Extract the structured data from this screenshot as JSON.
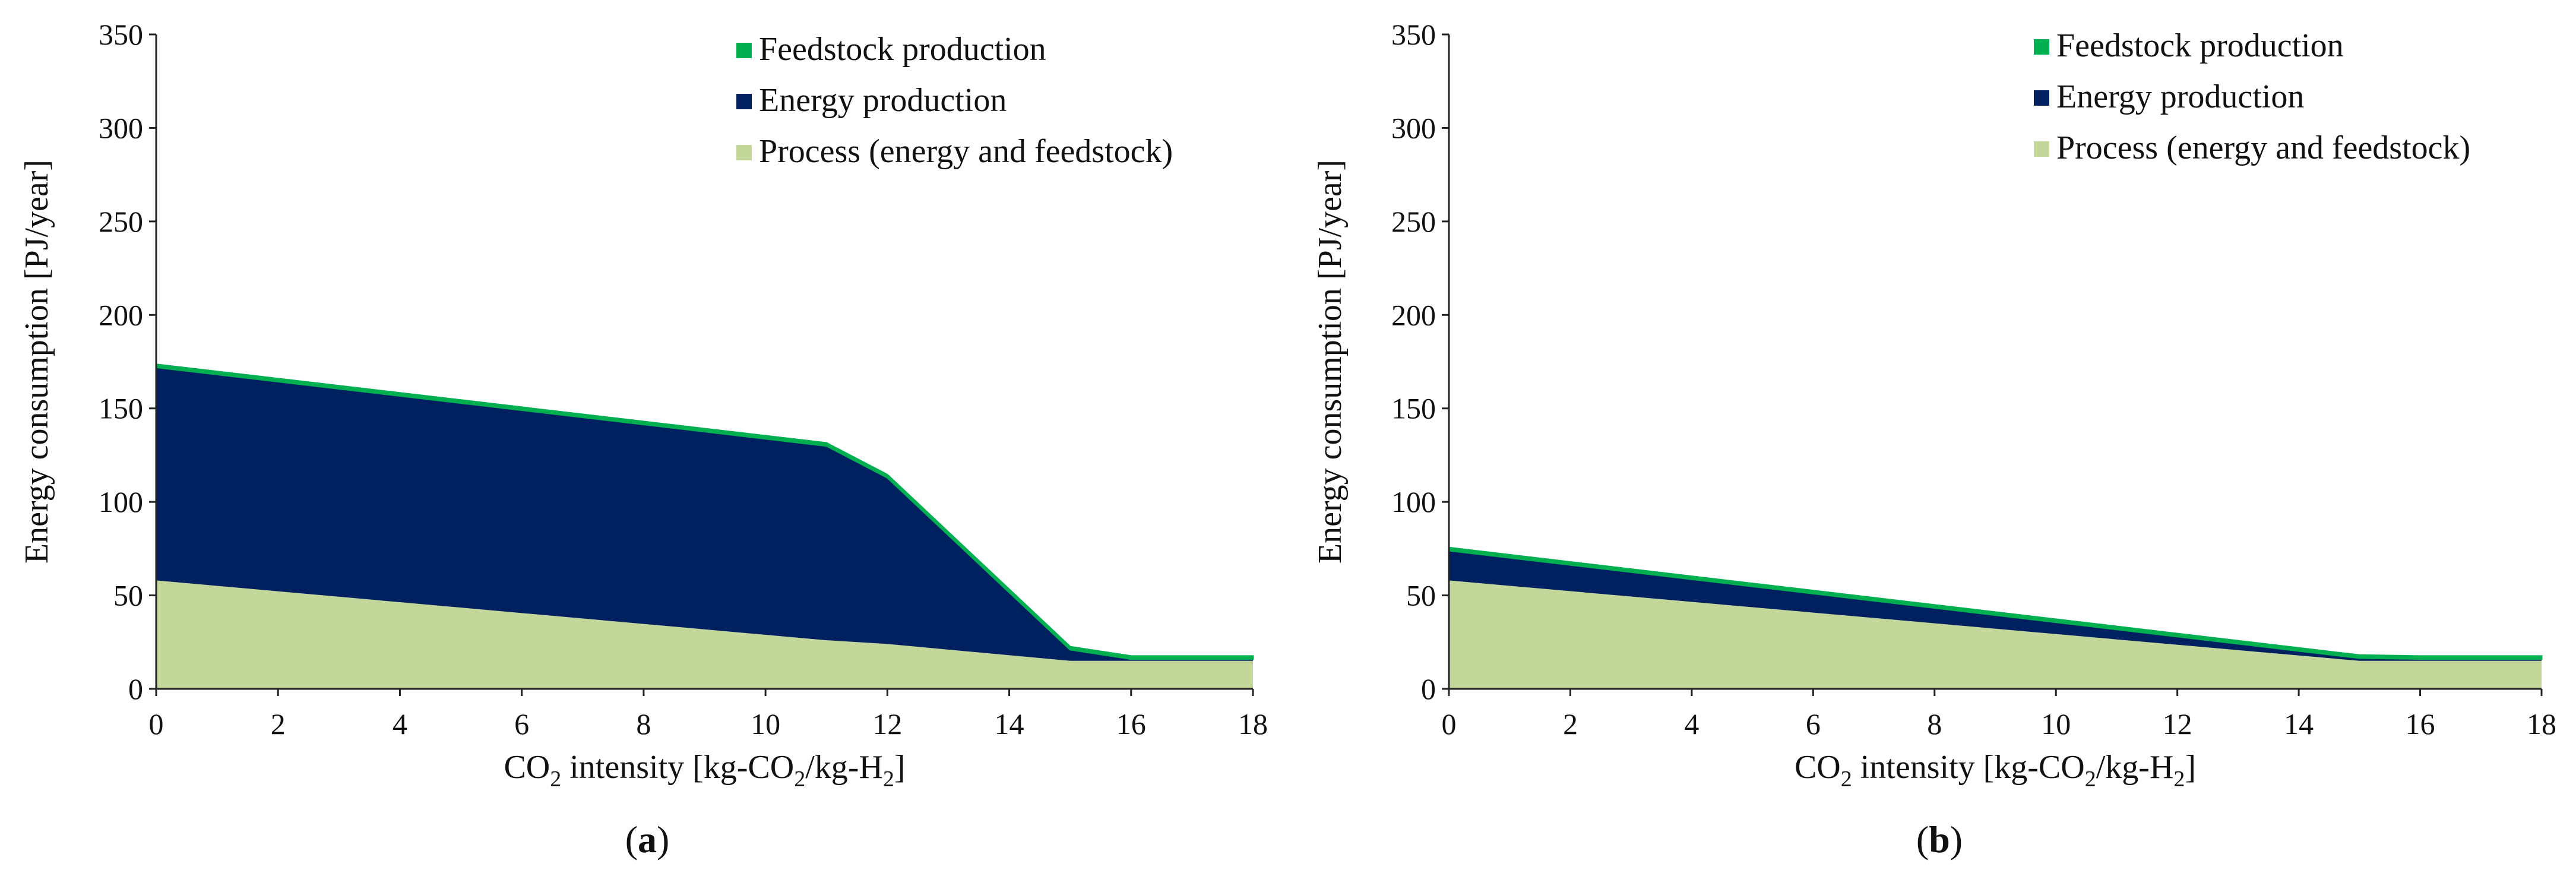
{
  "chart_data": [
    {
      "type": "area",
      "stacked": true,
      "panel_label": "(a)",
      "panel_letter": "a",
      "xlabel_parts": {
        "pre": "CO",
        "sub1": "2",
        "mid": " intensity [kg-CO",
        "sub2": "2",
        "mid2": "/kg-H",
        "sub3": "2",
        "post": "]"
      },
      "ylabel": "Energy consumption [PJ/year]",
      "xlim": [
        0,
        18
      ],
      "ylim": [
        0,
        350
      ],
      "xticks": [
        "0",
        "2",
        "4",
        "6",
        "8",
        "10",
        "12",
        "14",
        "16",
        "18"
      ],
      "yticks": [
        "0",
        "50",
        "100",
        "150",
        "200",
        "250",
        "300",
        "350"
      ],
      "x": [
        0,
        11,
        12,
        15,
        16,
        18
      ],
      "series": [
        {
          "name": "Process (energy and feedstock)",
          "color": "#c4d79b",
          "values": [
            58,
            26,
            24,
            15,
            15,
            15
          ]
        },
        {
          "name": "Energy production",
          "color": "#002060",
          "values": [
            114,
            104,
            89,
            6,
            1,
            1
          ]
        },
        {
          "name": "Feedstock production",
          "color": "#00b050",
          "values": [
            1.5,
            1.5,
            1.5,
            1.5,
            1.5,
            1.5
          ]
        }
      ],
      "legend_order": [
        "Feedstock production",
        "Energy production",
        "Process (energy and feedstock)"
      ],
      "legend_position": "top-right"
    },
    {
      "type": "area",
      "stacked": true,
      "panel_label": "(b)",
      "panel_letter": "b",
      "xlabel_parts": {
        "pre": "CO",
        "sub1": "2",
        "mid": " intensity [kg-CO",
        "sub2": "2",
        "mid2": "/kg-H",
        "sub3": "2",
        "post": "]"
      },
      "ylabel": "Energy consumption [PJ/year]",
      "xlim": [
        0,
        18
      ],
      "ylim": [
        0,
        350
      ],
      "xticks": [
        "0",
        "2",
        "4",
        "6",
        "8",
        "10",
        "12",
        "14",
        "16",
        "18"
      ],
      "yticks": [
        "0",
        "50",
        "100",
        "150",
        "200",
        "250",
        "300",
        "350"
      ],
      "x": [
        0,
        15,
        16,
        18
      ],
      "series": [
        {
          "name": "Process (energy and feedstock)",
          "color": "#c4d79b",
          "values": [
            58,
            15,
            15,
            15
          ]
        },
        {
          "name": "Energy production",
          "color": "#002060",
          "values": [
            16,
            1.5,
            1,
            1
          ]
        },
        {
          "name": "Feedstock production",
          "color": "#00b050",
          "values": [
            1.5,
            1.5,
            1.5,
            1.5
          ]
        }
      ],
      "legend_order": [
        "Feedstock production",
        "Energy production",
        "Process (energy and feedstock)"
      ],
      "legend_position": "top-right"
    }
  ]
}
